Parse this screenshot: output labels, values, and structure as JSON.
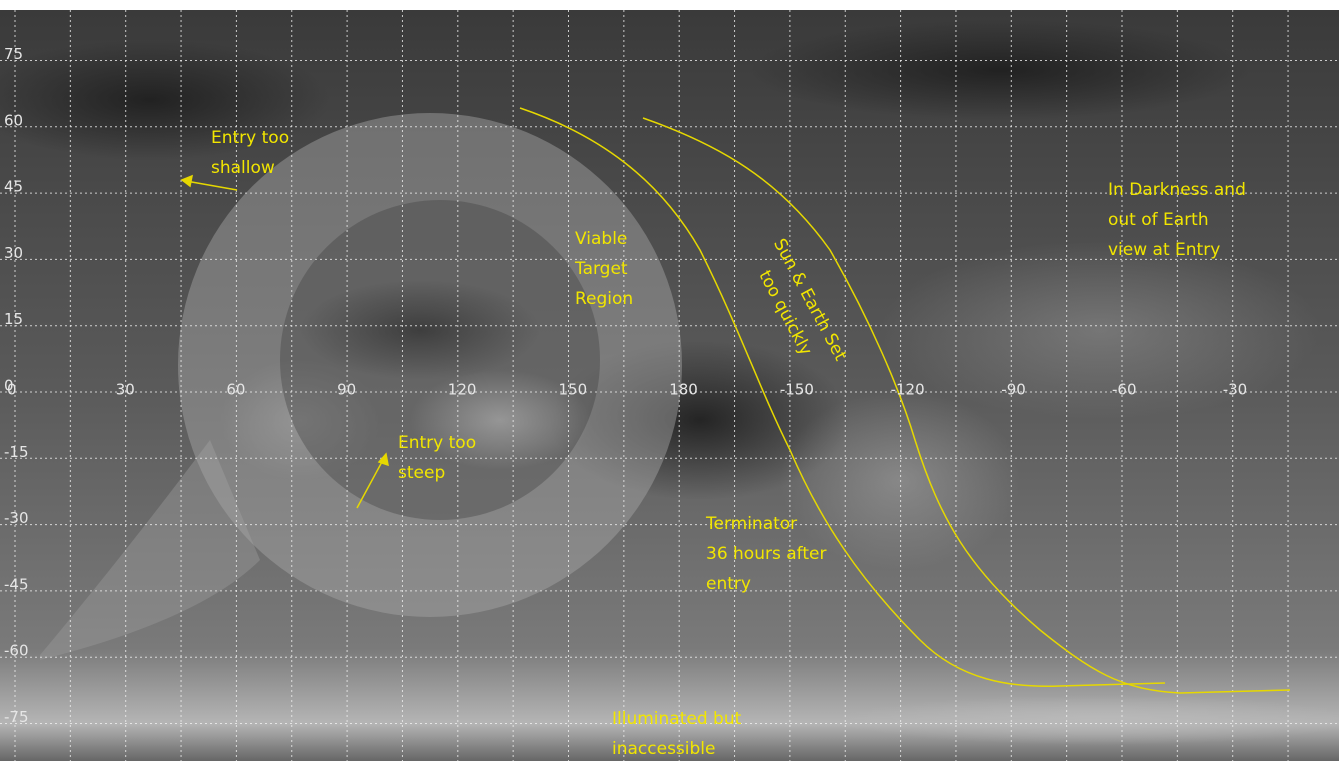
{
  "map": {
    "lon_labels": [
      0,
      30,
      60,
      90,
      120,
      150,
      180,
      -150,
      -120,
      -90,
      -60,
      -30
    ],
    "lat_labels": [
      75,
      60,
      45,
      30,
      15,
      0,
      -15,
      -30,
      -45,
      -60,
      -75
    ],
    "annotations": [
      {
        "lines": [
          "Entry too",
          "shallow"
        ]
      },
      {
        "lines": [
          "Viable",
          "Target",
          "Region"
        ]
      },
      {
        "lines": [
          "Sun & Earth Set",
          "too quickly"
        ]
      },
      {
        "lines": [
          "In Darkness and",
          "out of Earth",
          "view at Entry"
        ]
      },
      {
        "lines": [
          "Entry too",
          "steep"
        ]
      },
      {
        "lines": [
          "Terminator",
          "36 hours after",
          "entry"
        ]
      },
      {
        "lines": [
          "Illuminated but",
          "inaccessible"
        ]
      }
    ]
  }
}
